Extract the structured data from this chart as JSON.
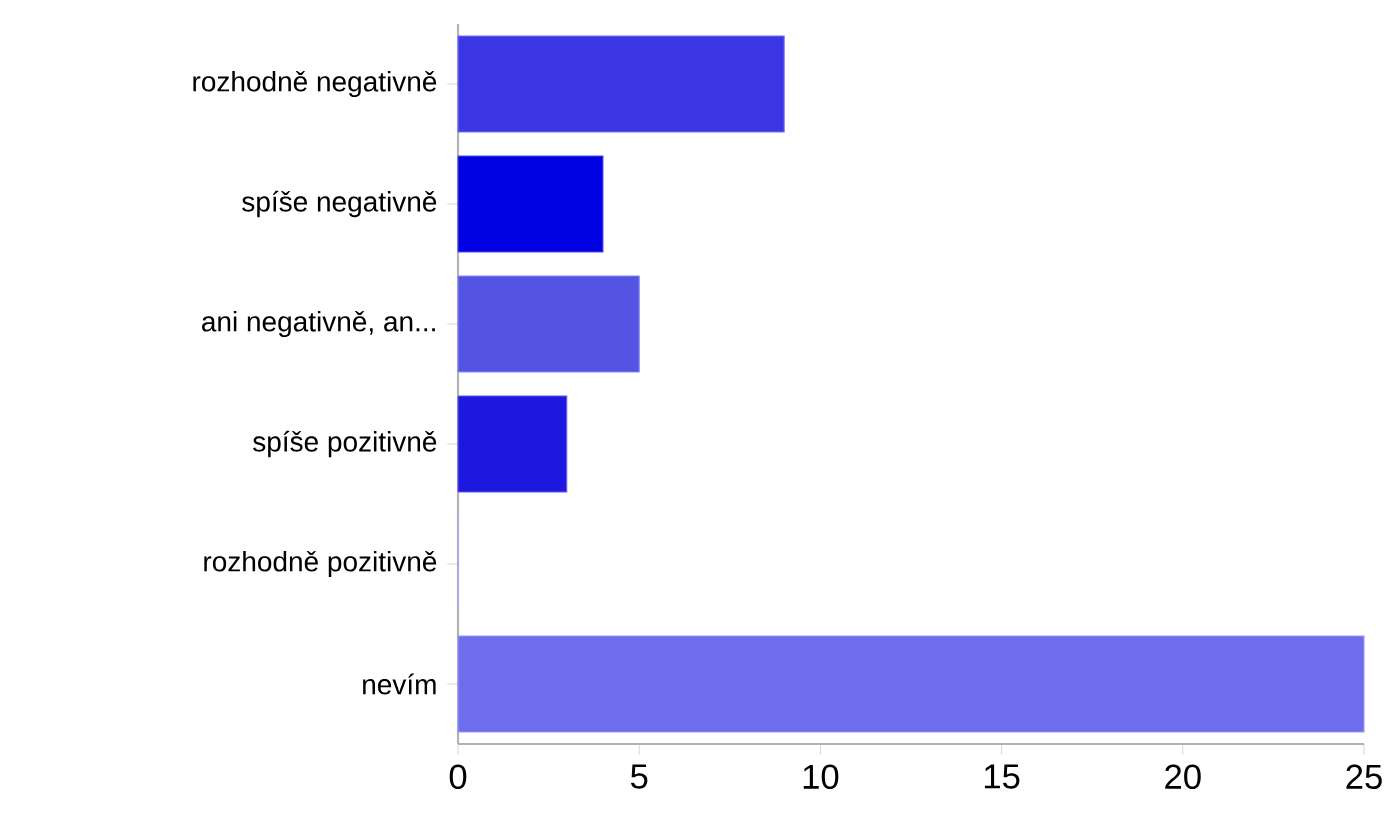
{
  "chart_data": {
    "type": "bar",
    "orientation": "horizontal",
    "categories": [
      "rozhodně negativně",
      "spíše negativně",
      "ani negativně, an...",
      "spíše pozitivně",
      "rozhodně pozitivně",
      "nevím"
    ],
    "values": [
      9,
      4,
      5,
      3,
      0,
      25
    ],
    "colors": [
      "#3a36e4",
      "#0000e0",
      "#5454e4",
      "#1c18e0",
      "#8080ee",
      "#6e6eec"
    ],
    "xlim": [
      0,
      25
    ],
    "xticks": [
      0,
      5,
      10,
      15,
      20,
      25
    ],
    "grid": false
  }
}
